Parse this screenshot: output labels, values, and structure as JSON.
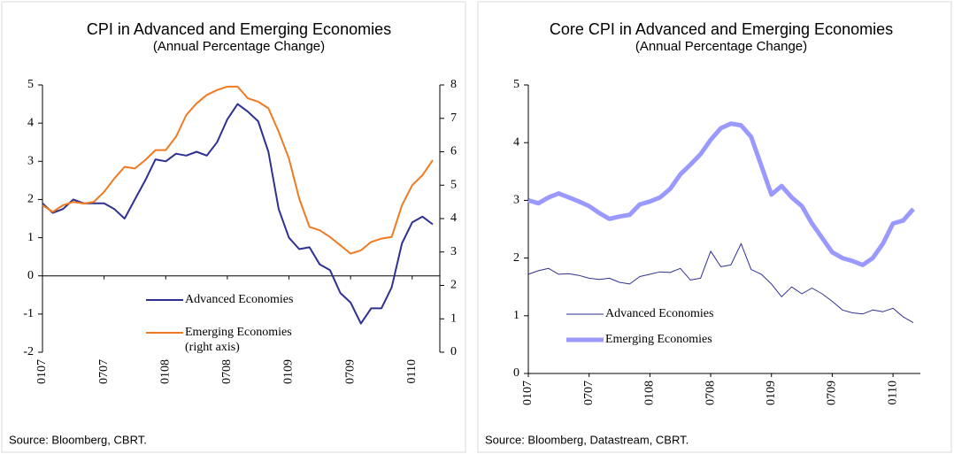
{
  "chart_data": [
    {
      "type": "line",
      "title": "CPI in Advanced and Emerging Economies",
      "subtitle": "(Annual Percentage Change)",
      "source": "Source: Bloomberg, CBRT.",
      "categories": [
        "0107",
        null,
        null,
        null,
        null,
        null,
        "0707",
        null,
        null,
        null,
        null,
        null,
        "0108",
        null,
        null,
        null,
        null,
        null,
        "0708",
        null,
        null,
        null,
        null,
        null,
        "0109",
        null,
        null,
        null,
        null,
        null,
        "0709",
        null,
        null,
        null,
        null,
        null,
        "0110",
        null,
        null
      ],
      "ylim": [
        -2,
        5
      ],
      "yticks": [
        -2,
        -1,
        0,
        1,
        2,
        3,
        4,
        5
      ],
      "y2lim": [
        0,
        8
      ],
      "y2ticks": [
        0,
        1,
        2,
        3,
        4,
        5,
        6,
        7,
        8
      ],
      "series": [
        {
          "name": "Advanced Economies",
          "color": "#2e3192",
          "values": [
            1.9,
            1.65,
            1.75,
            2.0,
            1.9,
            1.9,
            1.9,
            1.75,
            1.5,
            2.0,
            2.5,
            3.05,
            3.0,
            3.2,
            3.15,
            3.25,
            3.15,
            3.5,
            4.1,
            4.5,
            4.3,
            4.05,
            3.25,
            1.75,
            1.0,
            0.7,
            0.75,
            0.3,
            0.15,
            -0.45,
            -0.7,
            -1.25,
            -0.85,
            -0.85,
            -0.3,
            0.85,
            1.4,
            1.55,
            1.35
          ]
        },
        {
          "name": "Emerging Economies (right axis)",
          "color": "#f07a22",
          "axis": "y2",
          "values": [
            4.4,
            4.2,
            4.4,
            4.5,
            4.45,
            4.5,
            4.8,
            5.2,
            5.55,
            5.5,
            5.75,
            6.05,
            6.05,
            6.45,
            7.1,
            7.45,
            7.7,
            7.85,
            7.95,
            7.95,
            7.6,
            7.5,
            7.3,
            6.6,
            5.8,
            4.6,
            3.75,
            3.65,
            3.45,
            3.2,
            2.95,
            3.05,
            3.3,
            3.4,
            3.45,
            4.4,
            5.0,
            5.3,
            5.75
          ]
        }
      ]
    },
    {
      "type": "line",
      "title": "Core CPI in Advanced and Emerging Economies",
      "subtitle": "(Annual Percentage Change)",
      "source": "Source: Bloomberg, Datastream, CBRT.",
      "categories": [
        "0107",
        null,
        null,
        null,
        null,
        null,
        "0707",
        null,
        null,
        null,
        null,
        null,
        "0108",
        null,
        null,
        null,
        null,
        null,
        "0708",
        null,
        null,
        null,
        null,
        null,
        "0109",
        null,
        null,
        null,
        null,
        null,
        "0709",
        null,
        null,
        null,
        null,
        null,
        "0110",
        null,
        null
      ],
      "ylim": [
        0,
        5
      ],
      "yticks": [
        0,
        1,
        2,
        3,
        4,
        5
      ],
      "series": [
        {
          "name": "Advanced Economies",
          "color": "#2e3192",
          "values": [
            1.72,
            1.78,
            1.82,
            1.72,
            1.73,
            1.7,
            1.65,
            1.63,
            1.65,
            1.58,
            1.55,
            1.68,
            1.72,
            1.76,
            1.75,
            1.82,
            1.62,
            1.65,
            2.12,
            1.85,
            1.88,
            2.25,
            1.8,
            1.72,
            1.55,
            1.33,
            1.5,
            1.38,
            1.48,
            1.38,
            1.25,
            1.1,
            1.05,
            1.03,
            1.1,
            1.07,
            1.13,
            0.98,
            0.88
          ]
        },
        {
          "name": "Emerging Economies",
          "color": "#9999ff",
          "values": [
            3.0,
            2.95,
            3.05,
            3.12,
            3.05,
            2.98,
            2.9,
            2.78,
            2.68,
            2.72,
            2.75,
            2.93,
            2.98,
            3.05,
            3.2,
            3.45,
            3.62,
            3.8,
            4.05,
            4.25,
            4.33,
            4.3,
            4.1,
            3.6,
            3.1,
            3.25,
            3.05,
            2.9,
            2.6,
            2.35,
            2.1,
            2.0,
            1.95,
            1.88,
            2.0,
            2.25,
            2.6,
            2.65,
            2.85
          ]
        }
      ]
    }
  ]
}
